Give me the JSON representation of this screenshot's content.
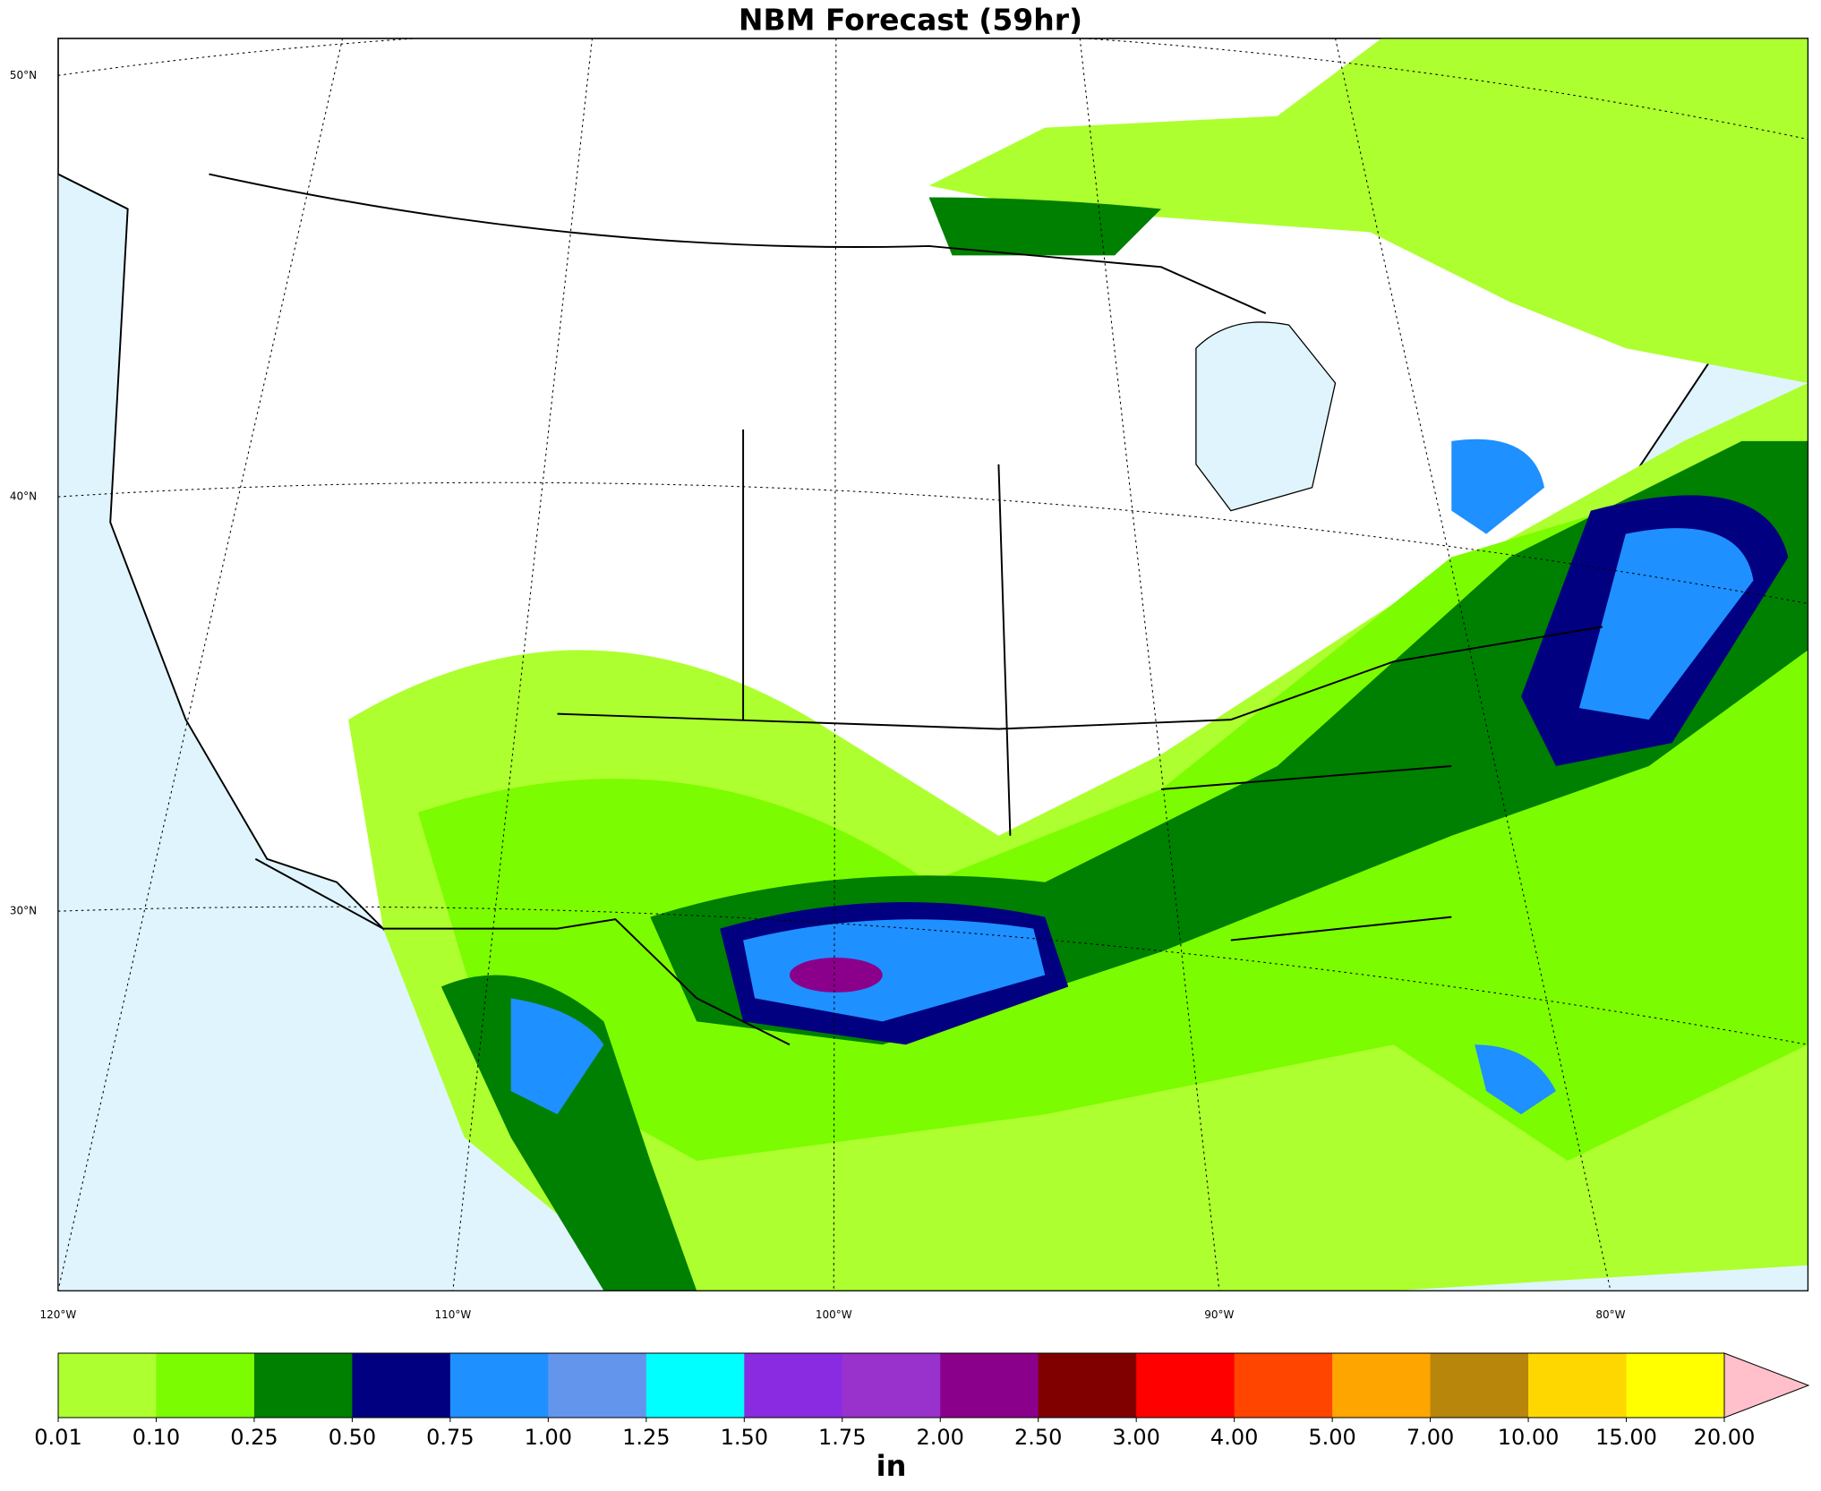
{
  "map": {
    "title": "NBM Forecast (59hr)",
    "lat_labels": [
      "50°N",
      "40°N",
      "30°N"
    ],
    "lon_labels": [
      "120°W",
      "110°W",
      "100°W",
      "90°W",
      "80°W"
    ]
  },
  "colorbar": {
    "unit": "in",
    "levels": [
      {
        "value": 0.01,
        "label": "0.01"
      },
      {
        "value": 0.1,
        "label": "0.10"
      },
      {
        "value": 0.25,
        "label": "0.25"
      },
      {
        "value": 0.5,
        "label": "0.50"
      },
      {
        "value": 0.75,
        "label": "0.75"
      },
      {
        "value": 1,
        "label": "1.00"
      },
      {
        "value": 1.25,
        "label": "1.25"
      },
      {
        "value": 1.5,
        "label": "1.50"
      },
      {
        "value": 1.75,
        "label": "1.75"
      },
      {
        "value": 2,
        "label": "2.00"
      },
      {
        "value": 2.5,
        "label": "2.50"
      },
      {
        "value": 3,
        "label": "3.00"
      },
      {
        "value": 4,
        "label": "4.00"
      },
      {
        "value": 5,
        "label": "5.00"
      },
      {
        "value": 7,
        "label": "7.00"
      },
      {
        "value": 10,
        "label": "10.00"
      },
      {
        "value": 15,
        "label": "15.00"
      },
      {
        "value": 20,
        "label": "20.00"
      }
    ],
    "colors": [
      "#adff2f",
      "#7cfc00",
      "#008000",
      "#000080",
      "#1e90ff",
      "#6495ed",
      "#00ffff",
      "#8a2be2",
      "#9932cc",
      "#8b008b",
      "#800000",
      "#ff0000",
      "#ff4500",
      "#ffa500",
      "#b8860b",
      "#ffd700",
      "#ffff00"
    ],
    "extend_color": "#ffc0cb"
  }
}
